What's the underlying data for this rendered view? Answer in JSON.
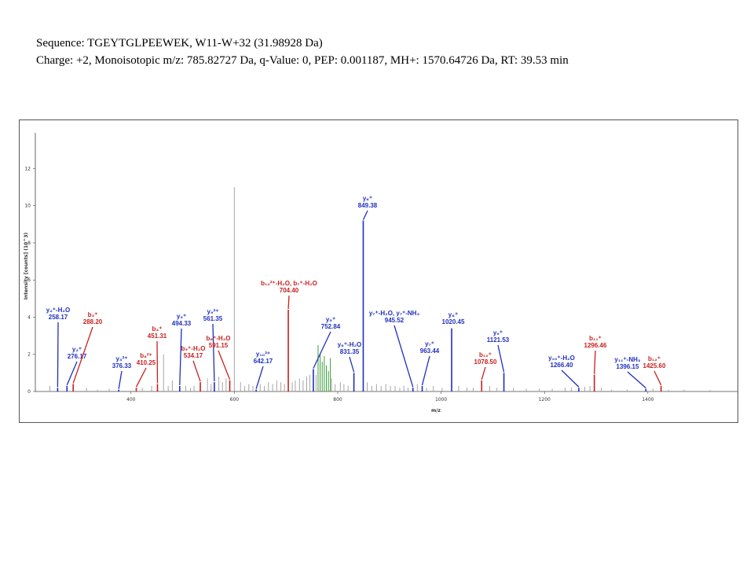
{
  "header": {
    "line1": "Sequence: TGEYTGLPEEWEK, W11-W+32 (31.98928 Da)",
    "line2": "Charge: +2, Monoisotopic m/z: 785.82727 Da, q-Value: 0, PEP: 0.001187, MH+: 1570.64726 Da, RT: 39.53 min"
  },
  "colors": {
    "y_ion": "#1f2fbf",
    "b_ion": "#c8201e",
    "unassigned": "#a6a6a6",
    "green_peak": "#3c9a3c"
  },
  "chart_data": {
    "type": "bar",
    "xlabel": "m/z",
    "ylabel": "Intensity [counts] (10^3)",
    "xlim": [
      215,
      1575
    ],
    "ylim": [
      0,
      13.5
    ],
    "x_ticks": [
      400,
      600,
      800,
      1000,
      1200,
      1400
    ],
    "y_ticks": [
      0,
      2,
      4,
      6,
      8,
      10,
      12
    ],
    "grid": false,
    "series": [
      {
        "ion": "y",
        "peaks": [
          {
            "mz": 258.17,
            "intensity": 0.2,
            "label_lines": [
              "y₂⁺-H₂O",
              "258.17"
            ]
          },
          {
            "mz": 276.17,
            "intensity": 0.3,
            "label_lines": [
              "y₂⁺",
              "276.17"
            ]
          },
          {
            "mz": 376.33,
            "intensity": 0.1,
            "label_lines": [
              "y₃²⁺",
              "376.33"
            ]
          },
          {
            "mz": 494.33,
            "intensity": 0.3,
            "label_lines": [
              "y₃⁺",
              "494.33"
            ]
          },
          {
            "mz": 561.35,
            "intensity": 0.5,
            "label_lines": [
              "y₉²⁺",
              "561.35"
            ]
          },
          {
            "mz": 642.17,
            "intensity": 0.1,
            "label_lines": [
              "y₁₀²⁺",
              "642.17"
            ]
          },
          {
            "mz": 752.84,
            "intensity": 1.2,
            "label_lines": [
              "y₅⁺",
              "752.84"
            ]
          },
          {
            "mz": 831.35,
            "intensity": 1.0,
            "label_lines": [
              "y₆⁺-H₂O",
              "831.35"
            ]
          },
          {
            "mz": 849.38,
            "intensity": 9.2,
            "label_lines": [
              "y₆⁺",
              "849.38"
            ]
          },
          {
            "mz": 945.52,
            "intensity": 0.2,
            "label_lines": [
              "y₇⁺-H₂O, y₇⁺-NH₃",
              "945.52"
            ]
          },
          {
            "mz": 963.44,
            "intensity": 0.3,
            "label_lines": [
              "y₇⁺",
              "963.44"
            ]
          },
          {
            "mz": 1020.45,
            "intensity": 3.4,
            "label_lines": [
              "y₈⁺",
              "1020.45"
            ]
          },
          {
            "mz": 1121.53,
            "intensity": 1.0,
            "label_lines": [
              "y₉⁺",
              "1121.53"
            ]
          },
          {
            "mz": 1266.4,
            "intensity": 0.2,
            "label_lines": [
              "y₁₀⁺-H₂O",
              "1266.40"
            ]
          },
          {
            "mz": 1396.15,
            "intensity": 0.15,
            "label_lines": [
              "y₁₁⁺-NH₃",
              "1396.15"
            ]
          }
        ]
      },
      {
        "ion": "b",
        "peaks": [
          {
            "mz": 288.2,
            "intensity": 0.4,
            "label_lines": [
              "b₃⁺",
              "288.20"
            ]
          },
          {
            "mz": 410.25,
            "intensity": 0.2,
            "label_lines": [
              "b₈²⁺",
              "410.25"
            ]
          },
          {
            "mz": 451.31,
            "intensity": 0.4,
            "label_lines": [
              "b₄⁺",
              "451.31"
            ]
          },
          {
            "mz": 534.17,
            "intensity": 0.5,
            "label_lines": [
              "b₅⁺-H₂O",
              "534.17"
            ]
          },
          {
            "mz": 591.15,
            "intensity": 0.6,
            "label_lines": [
              "b₆⁺-H₂O",
              "591.15"
            ]
          },
          {
            "mz": 704.4,
            "intensity": 4.4,
            "label_lines": [
              "b₁₂²⁺-H₂O, b₇⁺-H₂O",
              "704.40"
            ]
          },
          {
            "mz": 1078.5,
            "intensity": 0.6,
            "label_lines": [
              "b₁₀⁺",
              "1078.50"
            ]
          },
          {
            "mz": 1296.46,
            "intensity": 0.9,
            "label_lines": [
              "b₁₁⁺",
              "1296.46"
            ]
          },
          {
            "mz": 1425.6,
            "intensity": 0.3,
            "label_lines": [
              "b₁₂⁺",
              "1425.60"
            ]
          }
        ]
      },
      {
        "ion": "unassigned",
        "peaks": [
          {
            "mz": 600,
            "intensity": 11.0
          },
          {
            "mz": 243,
            "intensity": 0.3
          },
          {
            "mz": 314,
            "intensity": 0.2
          },
          {
            "mz": 335,
            "intensity": 0.1
          },
          {
            "mz": 358,
            "intensity": 0.15
          },
          {
            "mz": 422,
            "intensity": 0.2
          },
          {
            "mz": 440,
            "intensity": 0.3
          },
          {
            "mz": 463,
            "intensity": 2.0
          },
          {
            "mz": 472,
            "intensity": 0.3
          },
          {
            "mz": 480,
            "intensity": 0.6
          },
          {
            "mz": 506,
            "intensity": 0.3
          },
          {
            "mz": 515,
            "intensity": 0.2
          },
          {
            "mz": 522,
            "intensity": 0.3
          },
          {
            "mz": 548,
            "intensity": 0.7
          },
          {
            "mz": 555,
            "intensity": 0.4
          },
          {
            "mz": 570,
            "intensity": 0.8
          },
          {
            "mz": 577,
            "intensity": 0.5
          },
          {
            "mz": 584,
            "intensity": 0.7
          },
          {
            "mz": 612,
            "intensity": 0.5
          },
          {
            "mz": 620,
            "intensity": 0.3
          },
          {
            "mz": 628,
            "intensity": 0.4
          },
          {
            "mz": 636,
            "intensity": 0.3
          },
          {
            "mz": 650,
            "intensity": 0.4
          },
          {
            "mz": 658,
            "intensity": 0.3
          },
          {
            "mz": 666,
            "intensity": 0.5
          },
          {
            "mz": 674,
            "intensity": 0.4
          },
          {
            "mz": 682,
            "intensity": 0.6
          },
          {
            "mz": 690,
            "intensity": 0.5
          },
          {
            "mz": 697,
            "intensity": 0.4
          },
          {
            "mz": 712,
            "intensity": 0.5
          },
          {
            "mz": 718,
            "intensity": 0.6
          },
          {
            "mz": 726,
            "intensity": 0.7
          },
          {
            "mz": 733,
            "intensity": 0.6
          },
          {
            "mz": 740,
            "intensity": 0.8
          },
          {
            "mz": 746,
            "intensity": 0.9
          },
          {
            "mz": 758,
            "intensity": 0.9
          },
          {
            "mz": 788,
            "intensity": 0.7
          },
          {
            "mz": 795,
            "intensity": 0.4
          },
          {
            "mz": 805,
            "intensity": 0.5
          },
          {
            "mz": 812,
            "intensity": 0.4
          },
          {
            "mz": 820,
            "intensity": 0.3
          },
          {
            "mz": 857,
            "intensity": 0.5
          },
          {
            "mz": 866,
            "intensity": 0.3
          },
          {
            "mz": 875,
            "intensity": 0.4
          },
          {
            "mz": 884,
            "intensity": 0.3
          },
          {
            "mz": 893,
            "intensity": 0.4
          },
          {
            "mz": 902,
            "intensity": 0.3
          },
          {
            "mz": 911,
            "intensity": 0.3
          },
          {
            "mz": 920,
            "intensity": 0.2
          },
          {
            "mz": 928,
            "intensity": 0.3
          },
          {
            "mz": 936,
            "intensity": 0.2
          },
          {
            "mz": 954,
            "intensity": 0.4
          },
          {
            "mz": 972,
            "intensity": 0.2
          },
          {
            "mz": 985,
            "intensity": 0.3
          },
          {
            "mz": 1002,
            "intensity": 0.2
          },
          {
            "mz": 1034,
            "intensity": 0.3
          },
          {
            "mz": 1050,
            "intensity": 0.2
          },
          {
            "mz": 1062,
            "intensity": 0.2
          },
          {
            "mz": 1094,
            "intensity": 0.3
          },
          {
            "mz": 1108,
            "intensity": 0.2
          },
          {
            "mz": 1140,
            "intensity": 0.2
          },
          {
            "mz": 1165,
            "intensity": 0.15
          },
          {
            "mz": 1190,
            "intensity": 0.15
          },
          {
            "mz": 1215,
            "intensity": 0.15
          },
          {
            "mz": 1240,
            "intensity": 0.2
          },
          {
            "mz": 1252,
            "intensity": 0.2
          },
          {
            "mz": 1278,
            "intensity": 0.25
          },
          {
            "mz": 1288,
            "intensity": 0.3
          },
          {
            "mz": 1310,
            "intensity": 0.2
          },
          {
            "mz": 1330,
            "intensity": 0.1
          },
          {
            "mz": 1360,
            "intensity": 0.1
          },
          {
            "mz": 1410,
            "intensity": 0.15
          },
          {
            "mz": 1440,
            "intensity": 0.1
          },
          {
            "mz": 1470,
            "intensity": 0.1
          },
          {
            "mz": 1520,
            "intensity": 0.08
          }
        ]
      },
      {
        "ion": "green",
        "peaks": [
          {
            "mz": 762,
            "intensity": 2.5
          },
          {
            "mz": 766,
            "intensity": 2.0
          },
          {
            "mz": 770,
            "intensity": 1.6
          },
          {
            "mz": 774,
            "intensity": 1.9
          },
          {
            "mz": 778,
            "intensity": 1.4
          },
          {
            "mz": 782,
            "intensity": 1.1
          },
          {
            "mz": 785.8,
            "intensity": 1.8
          }
        ]
      }
    ]
  }
}
